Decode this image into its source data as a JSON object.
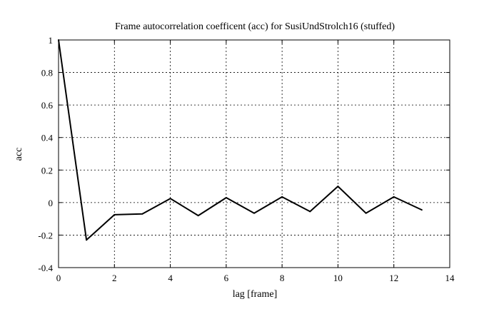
{
  "chart_data": {
    "type": "line",
    "title": "Frame autocorrelation coefficent (acc) for SusiUndStrolch16 (stuffed)",
    "xlabel": "lag [frame]",
    "ylabel": "acc",
    "xlim": [
      0,
      14
    ],
    "ylim": [
      -0.4,
      1
    ],
    "xticks": [
      "0",
      "2",
      "4",
      "6",
      "8",
      "10",
      "12",
      "14"
    ],
    "yticks": [
      "-0.4",
      "-0.2",
      "0",
      "0.2",
      "0.4",
      "0.6",
      "0.8",
      "1"
    ],
    "grid": true,
    "series": [
      {
        "color": "#000000",
        "x": [
          0,
          1,
          2,
          3,
          4,
          5,
          6,
          7,
          8,
          9,
          10,
          11,
          12,
          13
        ],
        "y": [
          1.0,
          -0.23,
          -0.075,
          -0.07,
          0.025,
          -0.08,
          0.03,
          -0.065,
          0.035,
          -0.055,
          0.1,
          -0.065,
          0.035,
          -0.045
        ]
      }
    ]
  }
}
